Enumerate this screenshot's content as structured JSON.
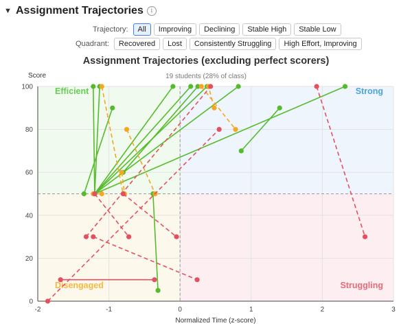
{
  "section": {
    "title": "Assignment Trajectories",
    "info_icon": "info-icon"
  },
  "filters": {
    "trajectory_label": "Trajectory:",
    "trajectory_options": [
      "All",
      "Improving",
      "Declining",
      "Stable High",
      "Stable Low"
    ],
    "trajectory_selected": "All",
    "quadrant_label": "Quadrant:",
    "quadrant_options": [
      "Recovered",
      "Lost",
      "Consistently Struggling",
      "High Effort, Improving"
    ]
  },
  "colors": {
    "improving": "#55bb2c",
    "stable": "#f5a623",
    "declining": "#e35060"
  },
  "chart_data": {
    "type": "scatter",
    "title": "Assignment Trajectories (excluding perfect scorers)",
    "subtitle": "19 students (28% of class)",
    "xlabel": "Normalized Time (z-score)",
    "ylabel": "Score",
    "xlim": [
      -2,
      3
    ],
    "ylim": [
      0,
      100
    ],
    "xticks": [
      -2,
      -1,
      0,
      1,
      2,
      3
    ],
    "yticks": [
      0,
      20,
      40,
      60,
      80,
      100
    ],
    "threshold_x": 0,
    "threshold_y": 50,
    "quadrants": [
      {
        "label": "Efficient",
        "position": "top-left",
        "color": "#66cc55"
      },
      {
        "label": "Strong",
        "position": "top-right",
        "color": "#4aa3df"
      },
      {
        "label": "Disengaged",
        "position": "bottom-left",
        "color": "#f5b942"
      },
      {
        "label": "Struggling",
        "position": "bottom-right",
        "color": "#e86a76"
      }
    ],
    "trajectories": [
      {
        "type": "improving",
        "from": [
          -1.2,
          50
        ],
        "to": [
          -1.22,
          100
        ]
      },
      {
        "type": "improving",
        "from": [
          -1.2,
          50
        ],
        "to": [
          -1.13,
          100
        ]
      },
      {
        "type": "improving",
        "from": [
          -1.35,
          50
        ],
        "to": [
          -0.95,
          90
        ]
      },
      {
        "type": "improving",
        "from": [
          -1.2,
          50
        ],
        "to": [
          -0.1,
          100
        ]
      },
      {
        "type": "improving",
        "from": [
          -1.2,
          50
        ],
        "to": [
          0.15,
          100
        ]
      },
      {
        "type": "improving",
        "from": [
          -1.2,
          50
        ],
        "to": [
          0.38,
          100
        ]
      },
      {
        "type": "improving",
        "from": [
          -1.2,
          50
        ],
        "to": [
          0.82,
          100
        ]
      },
      {
        "type": "improving",
        "from": [
          -1.2,
          50
        ],
        "to": [
          2.32,
          100
        ]
      },
      {
        "type": "improving",
        "from": [
          0.86,
          70
        ],
        "to": [
          1.4,
          90
        ]
      },
      {
        "type": "improving",
        "from": [
          -0.8,
          60
        ],
        "to": [
          0.25,
          100
        ]
      },
      {
        "type": "improving",
        "from": [
          -0.38,
          50
        ],
        "to": [
          -0.31,
          5
        ]
      },
      {
        "type": "stable",
        "from": [
          -1.1,
          100
        ],
        "to": [
          -0.8,
          50
        ]
      },
      {
        "type": "stable",
        "from": [
          -0.75,
          80
        ],
        "to": [
          -0.35,
          50
        ]
      },
      {
        "type": "stable",
        "from": [
          -0.82,
          60
        ],
        "to": [
          -0.78,
          50
        ]
      },
      {
        "type": "stable",
        "from": [
          0.3,
          100
        ],
        "to": [
          0.78,
          80
        ]
      },
      {
        "type": "stable",
        "from": [
          0.48,
          90
        ],
        "to": [
          0.4,
          100
        ]
      },
      {
        "type": "stable",
        "from": [
          -1.1,
          50
        ],
        "to": [
          -1.22,
          50
        ]
      },
      {
        "type": "declining",
        "from": [
          -1.2,
          50
        ],
        "to": [
          -0.72,
          30
        ]
      },
      {
        "type": "declining",
        "from": [
          -1.22,
          30
        ],
        "to": [
          0.24,
          10
        ]
      },
      {
        "type": "declining",
        "from": [
          -1.32,
          30
        ],
        "to": [
          0.43,
          100
        ]
      },
      {
        "type": "declining",
        "from": [
          -1.86,
          0
        ],
        "to": [
          0.55,
          80
        ]
      },
      {
        "type": "declining",
        "from": [
          -0.8,
          50
        ],
        "to": [
          -0.05,
          30
        ]
      },
      {
        "type": "declining",
        "from": [
          1.92,
          100
        ],
        "to": [
          2.6,
          30
        ]
      },
      {
        "type": "declining-solid",
        "from": [
          -1.68,
          10
        ],
        "to": [
          -0.36,
          10
        ]
      }
    ]
  }
}
